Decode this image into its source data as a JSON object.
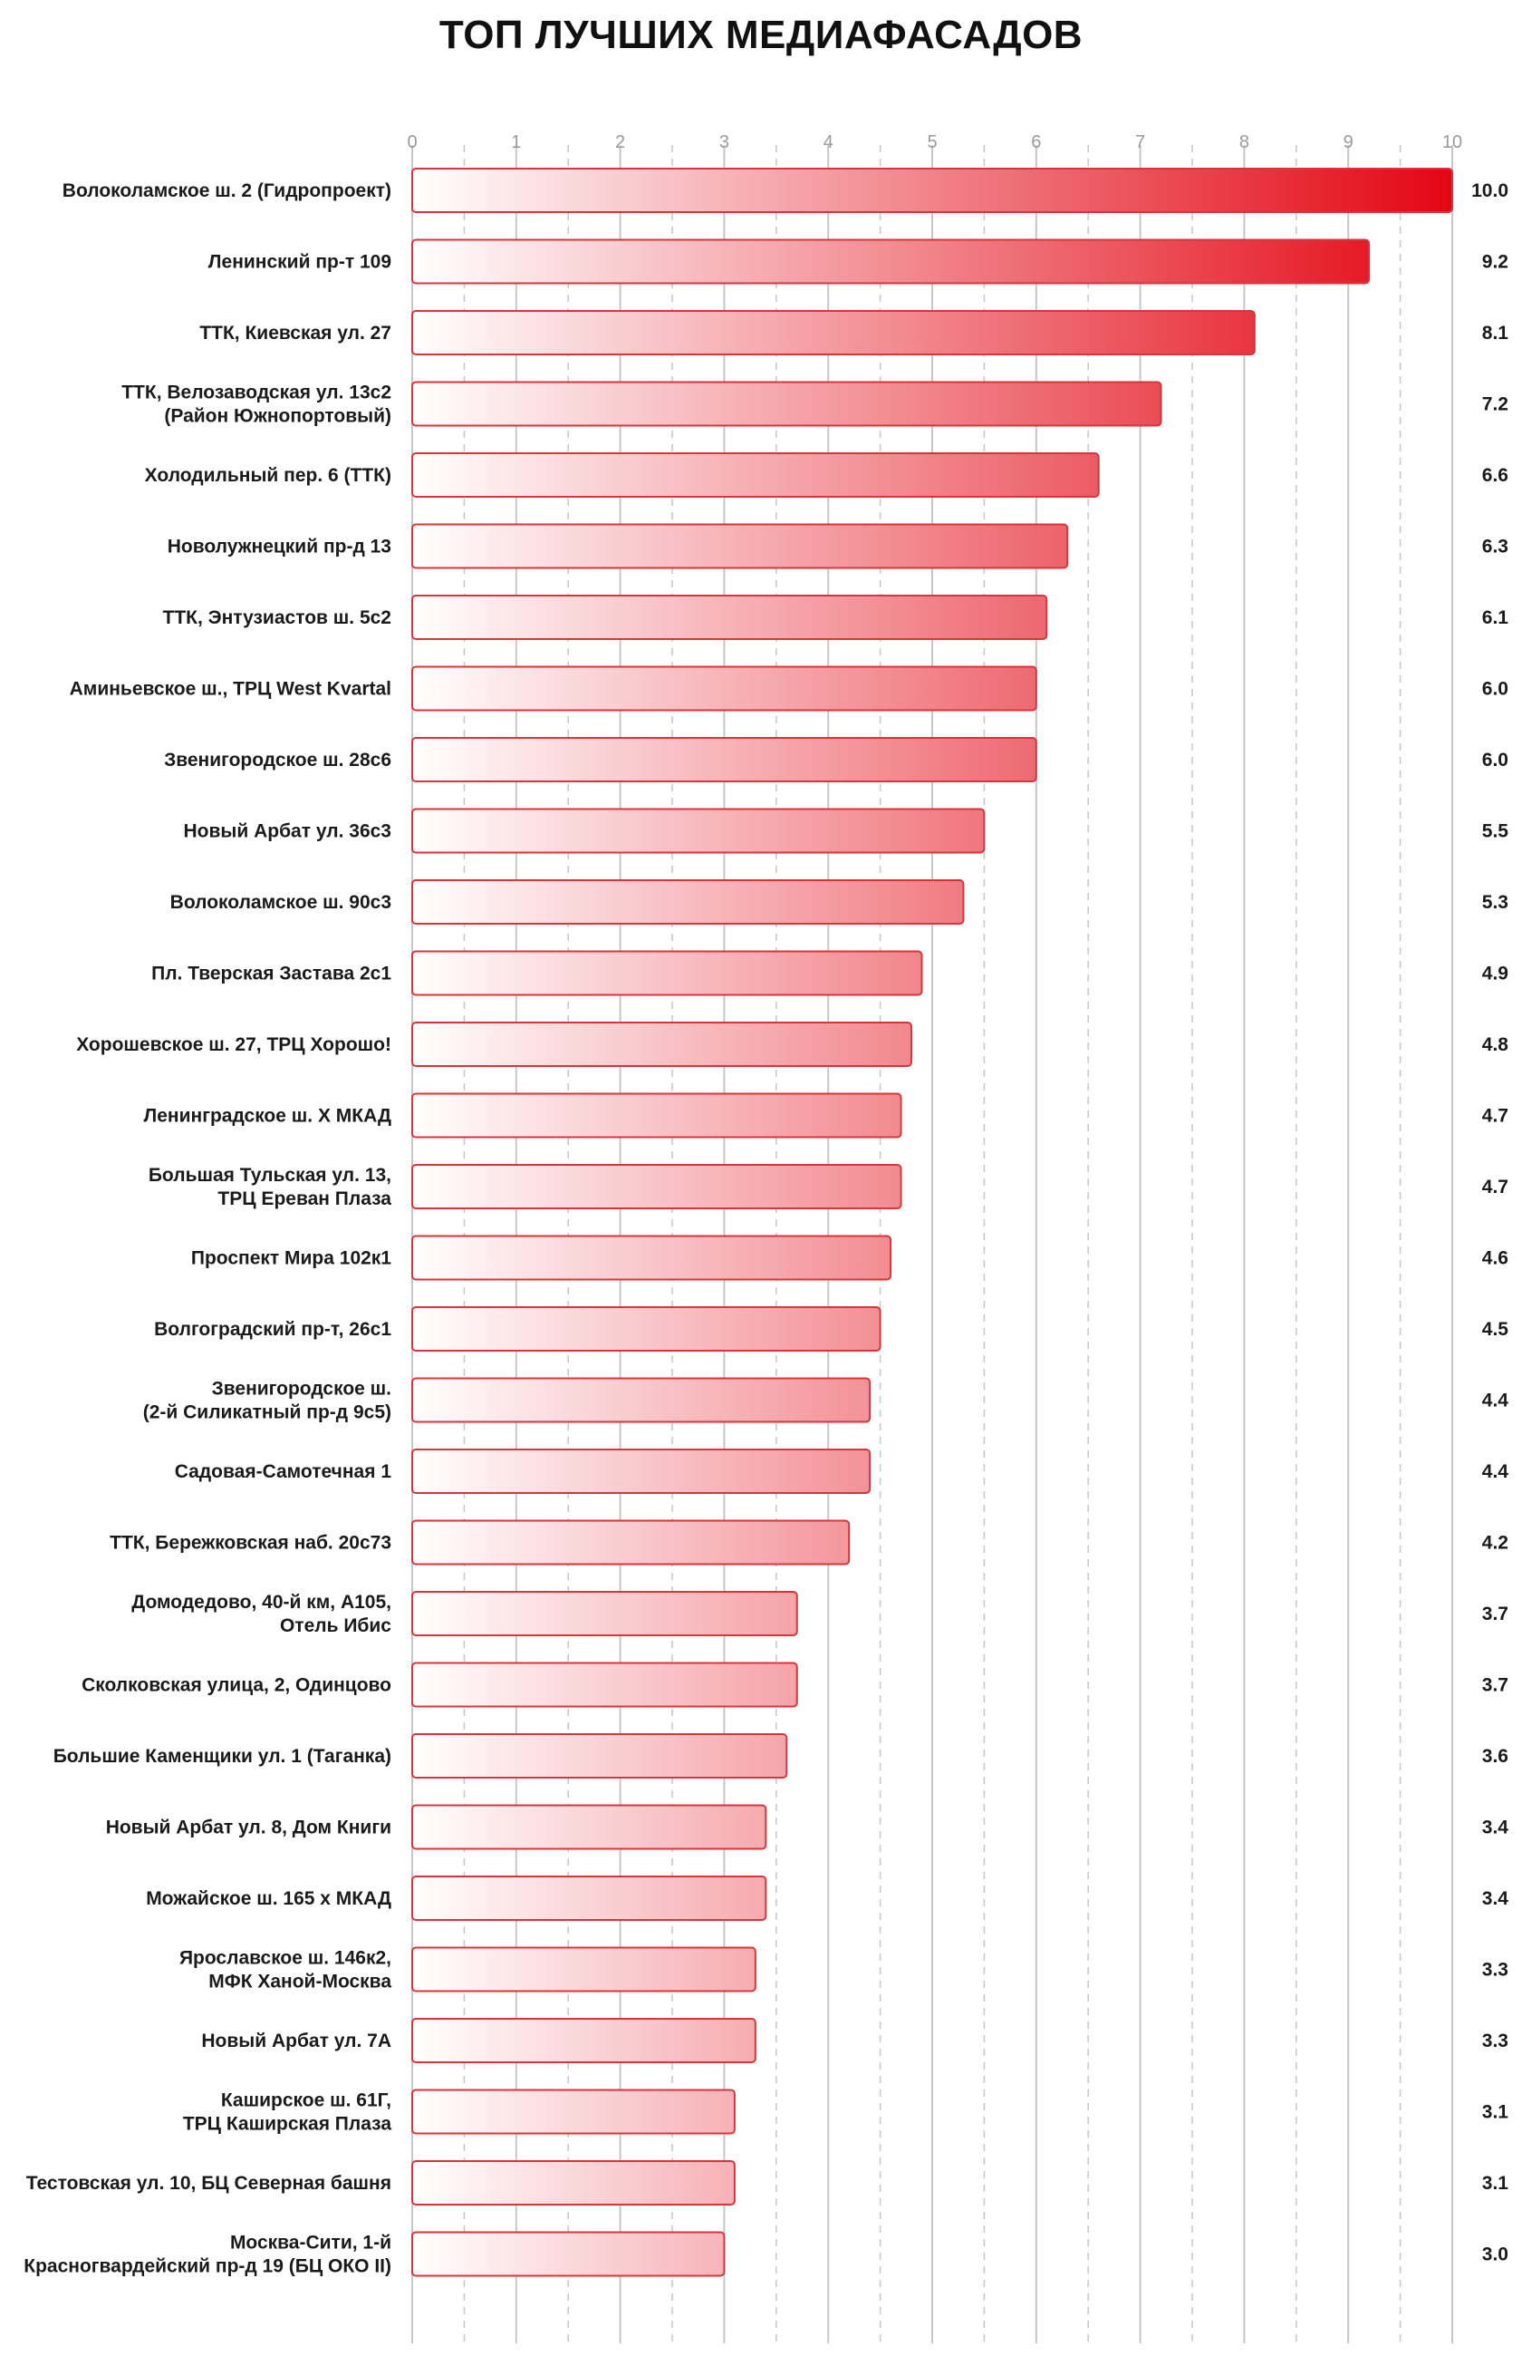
{
  "chart_data": {
    "type": "bar",
    "orientation": "horizontal",
    "title": "ТОП ЛУЧШИХ МЕДИАФАСАДОВ",
    "xlim": [
      0,
      10
    ],
    "ticks": [
      "0",
      "1",
      "2",
      "3",
      "4",
      "5",
      "6",
      "7",
      "8",
      "9",
      "10"
    ],
    "grid": true,
    "colors": {
      "bar_start": "#ffffff",
      "bar_end": "#e30613",
      "bar_stroke": "#d9343c",
      "grid_major": "#c6c6c6",
      "grid_minor": "#c6c6c6",
      "text": "#1a1a1a"
    },
    "categories": [
      [
        "Волоколамское ш. 2 (Гидропроект)"
      ],
      [
        "Ленинский пр-т 109"
      ],
      [
        "ТТК, Киевская ул. 27"
      ],
      [
        "ТТК, Велозаводская ул. 13с2",
        "(Район Южнопортовый)"
      ],
      [
        "Холодильный пер. 6 (ТТК)"
      ],
      [
        "Новолужнецкий пр-д 13"
      ],
      [
        "ТТК, Энтузиастов ш. 5с2"
      ],
      [
        "Аминьевское ш., ТРЦ West Kvartal"
      ],
      [
        "Звенигородское ш. 28с6"
      ],
      [
        "Новый Арбат ул. 36с3"
      ],
      [
        "Волоколамское ш. 90с3"
      ],
      [
        "Пл. Тверская Застава 2с1"
      ],
      [
        "Хорошевское ш. 27, ТРЦ Хорошо!"
      ],
      [
        "Ленинградское ш. Х МКАД"
      ],
      [
        "Большая Тульская ул. 13,",
        "ТРЦ Ереван Плаза"
      ],
      [
        "Проспект Мира 102к1"
      ],
      [
        "Волгоградский пр-т, 26с1"
      ],
      [
        "Звенигородское ш.",
        "(2-й Силикатный пр-д 9с5)"
      ],
      [
        "Садовая-Самотечная 1"
      ],
      [
        "ТТК, Бережковская наб. 20с73"
      ],
      [
        "Домодедово, 40-й км, А105,",
        "Отель Ибис"
      ],
      [
        "Сколковская улица, 2, Одинцово"
      ],
      [
        "Большие Каменщики ул. 1 (Таганка)"
      ],
      [
        "Новый Арбат ул. 8, Дом Книги"
      ],
      [
        "Можайское ш. 165 х МКАД"
      ],
      [
        "Ярославское ш. 146к2,",
        "МФК Ханой-Москва"
      ],
      [
        "Новый Арбат ул. 7А"
      ],
      [
        "Каширское ш. 61Г,",
        "ТРЦ Каширская Плаза"
      ],
      [
        "Тестовская ул. 10, БЦ Северная башня"
      ],
      [
        "Москва-Сити, 1-й",
        "Красногвардейский пр-д 19 (БЦ ОКО II)"
      ]
    ],
    "values": [
      10.0,
      9.2,
      8.1,
      7.2,
      6.6,
      6.3,
      6.1,
      6.0,
      6.0,
      5.5,
      5.3,
      4.9,
      4.8,
      4.7,
      4.7,
      4.6,
      4.5,
      4.4,
      4.4,
      4.2,
      3.7,
      3.7,
      3.6,
      3.4,
      3.4,
      3.3,
      3.3,
      3.1,
      3.1,
      3.0
    ],
    "value_labels": [
      "10.0",
      "9.2",
      "8.1",
      "7.2",
      "6.6",
      "6.3",
      "6.1",
      "6.0",
      "6.0",
      "5.5",
      "5.3",
      "4.9",
      "4.8",
      "4.7",
      "4.7",
      "4.6",
      "4.5",
      "4.4",
      "4.4",
      "4.2",
      "3.7",
      "3.7",
      "3.6",
      "3.4",
      "3.4",
      "3.3",
      "3.3",
      "3.1",
      "3.1",
      "3.0"
    ]
  }
}
